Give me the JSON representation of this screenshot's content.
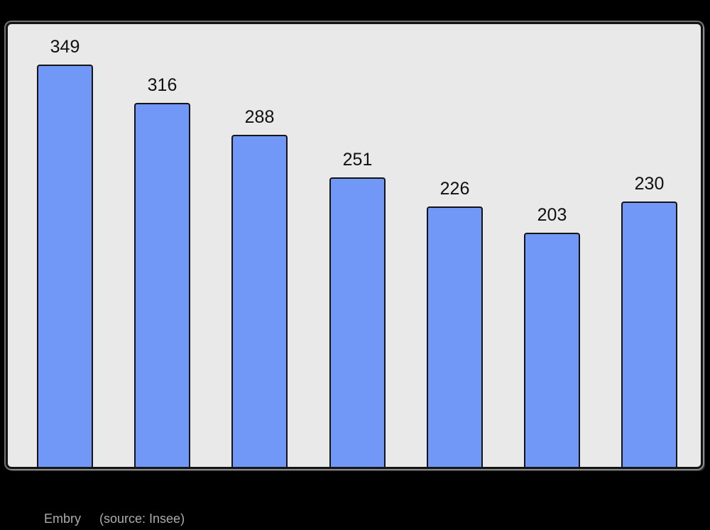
{
  "page": {
    "background_color": "#000000"
  },
  "chart_data": {
    "type": "bar",
    "values": [
      349,
      316,
      288,
      251,
      226,
      203,
      230
    ],
    "title": "",
    "xlabel": "",
    "ylabel": "",
    "ylim": [
      0,
      384
    ],
    "grid": false,
    "legend": "none",
    "data_labels": true,
    "bar_color": "#7197F7",
    "bar_border_color": "#141414",
    "plot_background_color": "#E9E9E9",
    "label_color": "#101010"
  },
  "caption": {
    "name": "Embry",
    "source": "(source: Insee)",
    "color": "#ACACAC"
  }
}
